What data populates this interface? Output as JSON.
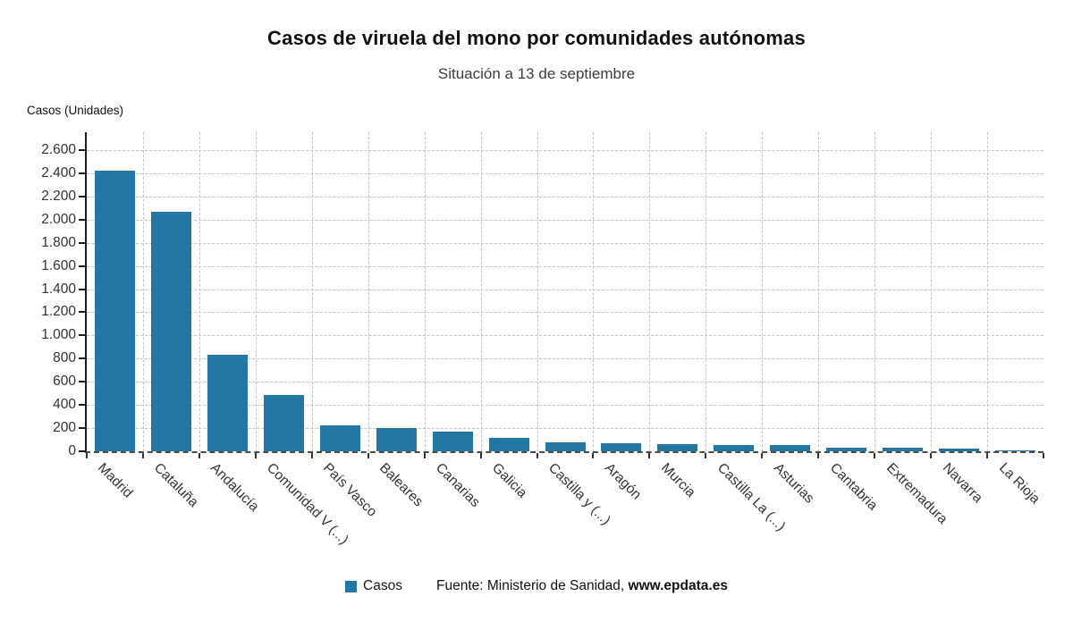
{
  "title": "Casos de viruela del mono por comunidades autónomas",
  "subtitle": "Situación a 13 de septiembre",
  "y_axis_title": "Casos (Unidades)",
  "legend": {
    "label": "Casos",
    "color": "#2277a3"
  },
  "source": {
    "prefix": "Fuente: Ministerio de Sanidad, ",
    "site": "www.epdata.es"
  },
  "chart_data": {
    "type": "bar",
    "title": "Casos de viruela del mono por comunidades autónomas",
    "subtitle": "Situación a 13 de septiembre",
    "ylabel": "Casos (Unidades)",
    "xlabel": "",
    "categories": [
      "Madrid",
      "Cataluña",
      "Andalucía",
      "Comunidad V (...)",
      "País Vasco",
      "Baleares",
      "Canarias",
      "Galicia",
      "Castilla y (...)",
      "Aragón",
      "Murcia",
      "Castilla La (...)",
      "Asturias",
      "Cantabria",
      "Extremadura",
      "Navarra",
      "La Rioja"
    ],
    "values": [
      2422,
      2069,
      830,
      489,
      226,
      203,
      166,
      115,
      80,
      73,
      63,
      57,
      55,
      32,
      30,
      21,
      8
    ],
    "series_name": "Casos",
    "y_ticks": [
      0,
      200,
      400,
      600,
      800,
      1000,
      1200,
      1400,
      1600,
      1800,
      2000,
      2200,
      2400,
      2600
    ],
    "y_tick_labels": [
      "0",
      "200",
      "400",
      "600",
      "800",
      "1.000",
      "1.200",
      "1.400",
      "1.600",
      "1.800",
      "2.000",
      "2.200",
      "2.400",
      "2.600"
    ],
    "ylim": [
      0,
      2750
    ],
    "grid": true,
    "grid_style": "dashed",
    "bar_color": "#2277a3",
    "legend_position": "bottom"
  }
}
